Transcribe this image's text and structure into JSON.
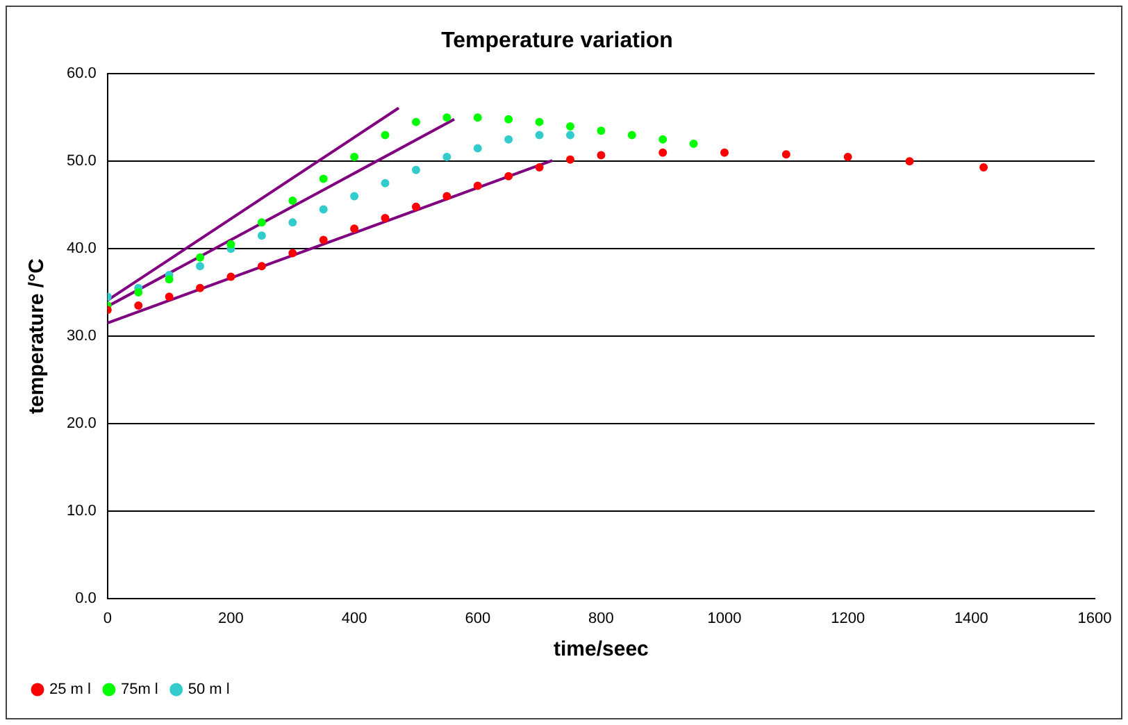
{
  "chart_data": {
    "type": "scatter",
    "title": "Temperature variation",
    "xlabel": "time/seec",
    "ylabel": "temperature /°C",
    "xlim": [
      0,
      1600
    ],
    "xticks": [
      0,
      200,
      400,
      600,
      800,
      1000,
      1200,
      1400,
      1600
    ],
    "ylim": [
      0,
      60
    ],
    "yticks": [
      {
        "value": 0,
        "label": "0.0"
      },
      {
        "value": 10,
        "label": "10.0"
      },
      {
        "value": 20,
        "label": "20.0"
      },
      {
        "value": 30,
        "label": "30.0"
      },
      {
        "value": 40,
        "label": "40.0"
      },
      {
        "value": 50,
        "label": "50.0"
      },
      {
        "value": 60,
        "label": "60.0"
      }
    ],
    "grid": "y",
    "legend": "bottom left",
    "marker": "circle",
    "series": [
      {
        "name": "25 m l",
        "color": "#ff0000",
        "x": [
          0,
          50,
          100,
          150,
          200,
          250,
          300,
          350,
          400,
          450,
          500,
          550,
          600,
          650,
          700,
          750,
          800,
          900,
          1000,
          1100,
          1200,
          1300,
          1420
        ],
        "values": [
          33,
          33.5,
          34.5,
          35.5,
          36.8,
          38,
          39.5,
          41,
          42.3,
          43.5,
          44.8,
          46,
          47.2,
          48.3,
          49.3,
          50.2,
          50.7,
          51,
          51,
          50.8,
          50.5,
          50,
          49.3
        ]
      },
      {
        "name": "75m l",
        "color": "#00ff00",
        "x": [
          0,
          50,
          100,
          150,
          200,
          250,
          300,
          350,
          400,
          450,
          500,
          550,
          600,
          650,
          700,
          750,
          800,
          850,
          900,
          950
        ],
        "values": [
          33.5,
          35,
          36.5,
          39,
          40.5,
          43,
          45.5,
          48,
          50.5,
          53,
          54.5,
          55,
          55,
          54.8,
          54.5,
          54,
          53.5,
          53,
          52.5,
          52
        ]
      },
      {
        "name": "50 m l",
        "color": "#33cccc",
        "x": [
          0,
          50,
          100,
          150,
          200,
          250,
          300,
          350,
          400,
          450,
          500,
          550,
          600,
          650,
          700,
          750
        ],
        "values": [
          34.5,
          35.5,
          37,
          38,
          40,
          41.5,
          43,
          44.5,
          46,
          47.5,
          49,
          50.5,
          51.5,
          52.5,
          53,
          53
        ]
      },
      {
        "type": "line",
        "color": "#800080",
        "marker": "none",
        "x": [
          0,
          472
        ],
        "values": [
          34.1,
          56.1
        ]
      },
      {
        "type": "line",
        "color": "#800080",
        "marker": "none",
        "x": [
          0,
          562
        ],
        "values": [
          33.4,
          54.8
        ]
      },
      {
        "type": "line",
        "color": "#800080",
        "marker": "none",
        "x": [
          0,
          721
        ],
        "values": [
          31.5,
          50.1
        ]
      }
    ]
  }
}
